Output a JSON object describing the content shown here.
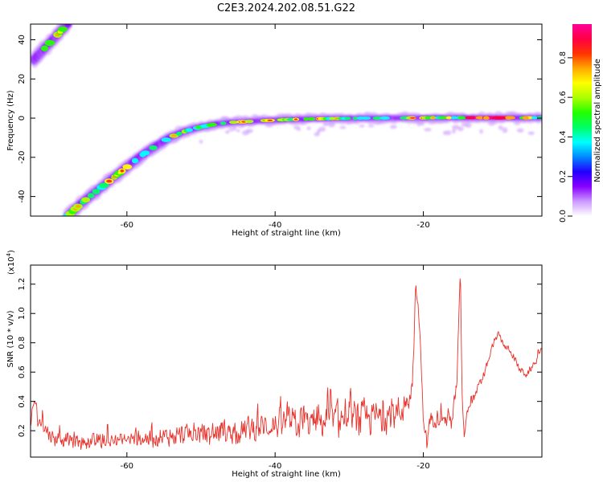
{
  "title": "C2E3.2024.202.08.51.G22",
  "chart_data": [
    {
      "type": "heatmap",
      "xlabel": "Height of straight line (km)",
      "ylabel": "Frequency (Hz)",
      "xlim": [
        -73,
        -4
      ],
      "ylim": [
        -50,
        48
      ],
      "x_ticks": [
        -60,
        -40,
        -20
      ],
      "x_tick_labels": [
        "-60",
        "-40",
        "-20"
      ],
      "y_ticks": [
        -40,
        -20,
        0,
        20,
        40
      ],
      "y_tick_labels": [
        "-40",
        "-20",
        "0",
        "20",
        "40"
      ],
      "colorbar": {
        "label": "Normalized spectral amplitude",
        "range": [
          0,
          0.97
        ],
        "ticks": [
          0,
          0.2,
          0.4,
          0.6,
          0.8
        ],
        "tick_labels": [
          "0.0",
          "0.2",
          "0.4",
          "0.6",
          "0.8"
        ],
        "colormap": [
          "#ffffff",
          "#cc99ff",
          "#8800ff",
          "#2200ff",
          "#0088ff",
          "#00ffff",
          "#00ff66",
          "#22ff00",
          "#aaff00",
          "#ffff00",
          "#ffaa00",
          "#ff3300",
          "#ff0044",
          "#ff0099"
        ]
      },
      "ridges": [
        {
          "x": [
            -72.5,
            -71.5,
            -70.5,
            -69.5,
            -68.5,
            -67.8
          ],
          "y": [
            30,
            34,
            38,
            42,
            46,
            48
          ]
        },
        {
          "x": [
            -68,
            -66,
            -64,
            -62,
            -60,
            -58,
            -56,
            -54,
            -52,
            -50,
            -48,
            -46,
            -44,
            -42,
            -40,
            -38,
            -36,
            -34,
            -32,
            -30,
            -28,
            -26,
            -24,
            -22,
            -20,
            -18,
            -16,
            -14,
            -12,
            -10,
            -8,
            -6,
            -4
          ],
          "y": [
            -50,
            -43,
            -37,
            -31,
            -25,
            -19,
            -14,
            -9.5,
            -6.5,
            -4.5,
            -3,
            -2.2,
            -1.8,
            -1.3,
            -1,
            -0.7,
            -0.5,
            -0.3,
            -0.2,
            -0.1,
            0,
            0,
            0.1,
            0.1,
            0.1,
            0.2,
            0.2,
            0.2,
            0.2,
            0.2,
            0.2,
            0.2,
            0.2
          ]
        }
      ]
    },
    {
      "type": "line",
      "xlabel": "Height of straight line (km)",
      "ylabel": "SNR (10 * v/v)",
      "y_multiplier": "(x10",
      "y_multiplier_exp": "4",
      "xlim": [
        -73,
        -4
      ],
      "ylim": [
        0.02,
        1.33
      ],
      "x_ticks": [
        -60,
        -40,
        -20
      ],
      "x_tick_labels": [
        "-60",
        "-40",
        "-20"
      ],
      "y_ticks": [
        0.2,
        0.4,
        0.6,
        0.8,
        1.0,
        1.2
      ],
      "y_tick_labels": [
        "0.2",
        "0.4",
        "0.6",
        "0.8",
        "1.0",
        "1.2"
      ],
      "color": "#e8312a",
      "trend": {
        "x": [
          -73,
          -72.5,
          -72,
          -70,
          -65,
          -60,
          -55,
          -50,
          -45,
          -40,
          -35,
          -30,
          -27,
          -25,
          -23,
          -21.5,
          -21,
          -20.5,
          -20,
          -19.5,
          -19,
          -18,
          -17,
          -16,
          -15.5,
          -15,
          -14.8,
          -14.5,
          -14,
          -13,
          -12,
          -11,
          -10,
          -9,
          -8,
          -7,
          -6,
          -5,
          -4
        ],
        "y": [
          0.22,
          0.42,
          0.28,
          0.15,
          0.12,
          0.14,
          0.16,
          0.18,
          0.2,
          0.24,
          0.26,
          0.28,
          0.29,
          0.3,
          0.33,
          0.5,
          1.2,
          0.9,
          0.3,
          0.1,
          0.28,
          0.3,
          0.28,
          0.3,
          0.5,
          1.3,
          0.5,
          0.15,
          0.35,
          0.45,
          0.55,
          0.72,
          0.86,
          0.78,
          0.72,
          0.62,
          0.58,
          0.66,
          0.75
        ]
      },
      "noise_amplitude": {
        "x": [
          -73,
          -60,
          -50,
          -40,
          -30,
          -22,
          -21,
          -16,
          -15,
          -14,
          -10,
          -4
        ],
        "y": [
          0.06,
          0.07,
          0.09,
          0.12,
          0.16,
          0.12,
          0.05,
          0.1,
          0.04,
          0.05,
          0.03,
          0.03
        ]
      }
    }
  ]
}
